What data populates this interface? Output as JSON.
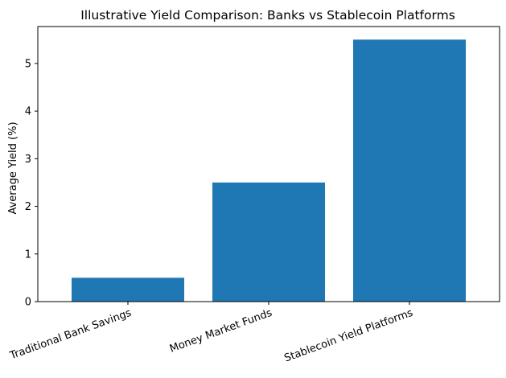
{
  "chart_data": {
    "type": "bar",
    "title": "Illustrative Yield Comparison: Banks vs Stablecoin Platforms",
    "xlabel": "",
    "ylabel": "Average Yield (%)",
    "categories": [
      "Traditional Bank Savings",
      "Money Market Funds",
      "Stablecoin Yield Platforms"
    ],
    "values": [
      0.5,
      2.5,
      5.5
    ],
    "ylim": [
      0,
      5.775
    ],
    "yticks": [
      0,
      1,
      2,
      3,
      4,
      5
    ],
    "x_tick_rotation_deg": 20,
    "grid": false,
    "legend": "none",
    "bar_color": "#1f77b4"
  }
}
